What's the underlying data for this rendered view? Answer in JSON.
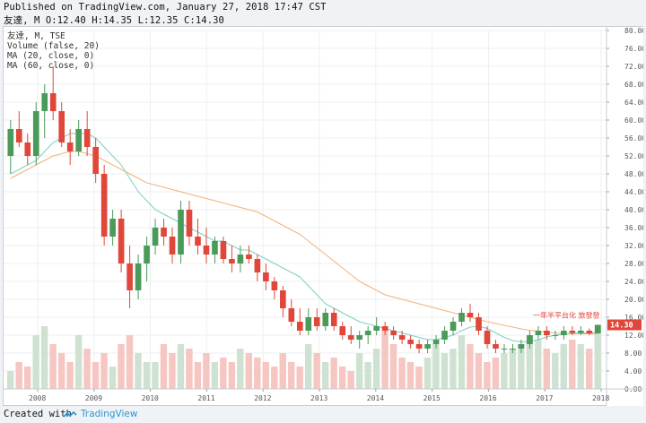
{
  "header": {
    "published": "Published on TradingView.com, January 27, 2018 17:47 CST",
    "ohlc_line": "友達, M O:12.40 H:14.35 L:12.35 C:14.30"
  },
  "legend": {
    "symbol": "友達, M, TSE",
    "volume": "Volume (false, 20)",
    "ma20": "MA (20, close, 0)",
    "ma60": "MA (60, close, 0)"
  },
  "footer": {
    "created_with": "Created with",
    "brand": "TradingView"
  },
  "colors": {
    "up": "#4a9a5a",
    "down": "#e0473a",
    "vol_up": "#cfe2d2",
    "vol_down": "#f5c6c2",
    "ma20": "#7fcfc0",
    "ma60": "#f2b27a",
    "price_label_bg": "#e0473a"
  },
  "chart_data": {
    "type": "candlestick",
    "ylim": [
      0,
      80
    ],
    "y_ticks": [
      "0.00",
      "4.00",
      "8.00",
      "12.00",
      "16.00",
      "20.00",
      "24.00",
      "28.00",
      "32.00",
      "36.00",
      "40.00",
      "44.00",
      "48.00",
      "52.00",
      "56.00",
      "60.00",
      "64.00",
      "68.00",
      "72.00",
      "76.00",
      "80.00"
    ],
    "x_ticks": [
      "2008",
      "2009",
      "2010",
      "2011",
      "2012",
      "2013",
      "2014",
      "2015",
      "2016",
      "2017",
      "2018"
    ],
    "last_price_label": "14.30",
    "annotation": "一年半平台化 旅發發",
    "candles": [
      [
        52,
        60,
        48,
        58
      ],
      [
        58,
        62,
        54,
        55
      ],
      [
        55,
        57,
        50,
        52
      ],
      [
        52,
        64,
        50,
        62
      ],
      [
        62,
        68,
        56,
        66
      ],
      [
        66,
        72,
        60,
        62
      ],
      [
        62,
        64,
        54,
        55
      ],
      [
        55,
        58,
        50,
        53
      ],
      [
        53,
        60,
        52,
        58
      ],
      [
        58,
        62,
        52,
        54
      ],
      [
        54,
        56,
        46,
        48
      ],
      [
        48,
        50,
        32,
        34
      ],
      [
        34,
        40,
        32,
        38
      ],
      [
        38,
        40,
        26,
        28
      ],
      [
        28,
        32,
        18,
        22
      ],
      [
        22,
        30,
        20,
        28
      ],
      [
        28,
        34,
        24,
        32
      ],
      [
        32,
        38,
        30,
        36
      ],
      [
        36,
        38,
        32,
        34
      ],
      [
        34,
        36,
        28,
        30
      ],
      [
        30,
        42,
        28,
        40
      ],
      [
        40,
        42,
        32,
        34
      ],
      [
        34,
        38,
        30,
        32
      ],
      [
        32,
        36,
        28,
        30
      ],
      [
        30,
        34,
        28,
        33
      ],
      [
        33,
        34,
        28,
        29
      ],
      [
        29,
        32,
        26,
        28
      ],
      [
        28,
        32,
        26,
        30
      ],
      [
        30,
        32,
        28,
        29
      ],
      [
        29,
        30,
        24,
        26
      ],
      [
        26,
        28,
        22,
        24
      ],
      [
        24,
        25,
        20,
        22
      ],
      [
        22,
        23,
        16,
        18
      ],
      [
        18,
        20,
        14,
        15
      ],
      [
        15,
        18,
        12,
        13
      ],
      [
        13,
        18,
        12,
        16
      ],
      [
        16,
        18,
        13,
        14
      ],
      [
        14,
        18,
        13,
        17
      ],
      [
        17,
        18,
        13,
        14
      ],
      [
        14,
        15,
        11,
        12
      ],
      [
        12,
        14,
        10,
        11
      ],
      [
        11,
        13,
        9,
        12
      ],
      [
        12,
        14,
        10,
        13
      ],
      [
        13,
        16,
        12,
        14
      ],
      [
        14,
        15,
        12,
        13
      ],
      [
        13,
        14,
        11,
        12
      ],
      [
        12,
        13,
        10,
        11
      ],
      [
        11,
        12,
        9,
        10
      ],
      [
        10,
        11,
        8,
        9
      ],
      [
        9,
        11,
        8,
        10
      ],
      [
        10,
        12,
        9,
        11
      ],
      [
        11,
        14,
        10,
        13
      ],
      [
        13,
        16,
        12,
        15
      ],
      [
        15,
        18,
        14,
        17
      ],
      [
        17,
        19,
        15,
        16
      ],
      [
        16,
        17,
        12,
        13
      ],
      [
        13,
        14,
        9,
        10
      ],
      [
        10,
        11,
        8,
        9
      ],
      [
        9,
        10,
        8,
        9
      ],
      [
        9,
        10,
        8,
        9
      ],
      [
        9,
        11,
        8,
        10
      ],
      [
        10,
        13,
        9,
        12
      ],
      [
        12,
        14,
        11,
        13
      ],
      [
        13,
        14,
        11,
        12
      ],
      [
        12,
        13,
        11,
        12
      ],
      [
        12,
        14,
        11,
        13
      ],
      [
        13,
        14,
        12,
        12.5
      ],
      [
        12.5,
        14,
        12,
        13
      ],
      [
        13,
        13.5,
        12,
        12.4
      ],
      [
        12.4,
        14.35,
        12.35,
        14.3
      ]
    ],
    "volume": [
      4,
      6,
      5,
      12,
      14,
      10,
      8,
      6,
      12,
      9,
      6,
      8,
      5,
      10,
      12,
      8,
      6,
      6,
      10,
      8,
      10,
      9,
      6,
      8,
      6,
      7,
      6,
      9,
      8,
      7,
      6,
      5,
      8,
      6,
      5,
      10,
      8,
      6,
      7,
      5,
      4,
      8,
      6,
      9,
      14,
      10,
      7,
      6,
      5,
      7,
      10,
      8,
      9,
      12,
      10,
      8,
      6,
      7,
      8,
      9,
      10,
      12,
      11,
      9,
      8,
      10,
      11,
      10,
      9,
      14
    ],
    "ma20": [
      48,
      49,
      50,
      51,
      53,
      55,
      56,
      57,
      57,
      57,
      56,
      54,
      52,
      50,
      47,
      44,
      42,
      40,
      39,
      38,
      37,
      36,
      35,
      34,
      33,
      33,
      32,
      31,
      31,
      30,
      29,
      28,
      27,
      26,
      25,
      23,
      21,
      19,
      18,
      17,
      16,
      15,
      14.5,
      14,
      13.5,
      13,
      12.5,
      12,
      11.5,
      11,
      11,
      11.5,
      12,
      13,
      13.8,
      14,
      13.5,
      12.5,
      11.5,
      10.8,
      10.5,
      10.6,
      11,
      11.6,
      12,
      12.2,
      12.4,
      12.5,
      12.5,
      12.6
    ],
    "ma60": [
      47,
      48,
      49,
      50,
      51,
      52,
      52.5,
      53,
      53,
      52.5,
      52,
      51,
      50,
      49,
      48,
      47,
      46,
      45.5,
      45,
      44.5,
      44,
      43.5,
      43,
      42.5,
      42,
      41.5,
      41,
      40.5,
      40,
      39.5,
      38.5,
      37.5,
      36.5,
      35.5,
      34.5,
      33,
      31.5,
      30,
      28.5,
      27,
      25.5,
      24,
      23,
      22,
      21,
      20.5,
      20,
      19.5,
      19,
      18.5,
      18,
      17.5,
      17,
      16.5,
      16,
      15.5,
      15,
      14.6,
      14.2,
      13.8,
      13.4,
      13.1,
      12.9,
      12.7,
      12.5,
      12.4,
      12.3,
      12.3,
      12.3,
      12.3
    ]
  }
}
